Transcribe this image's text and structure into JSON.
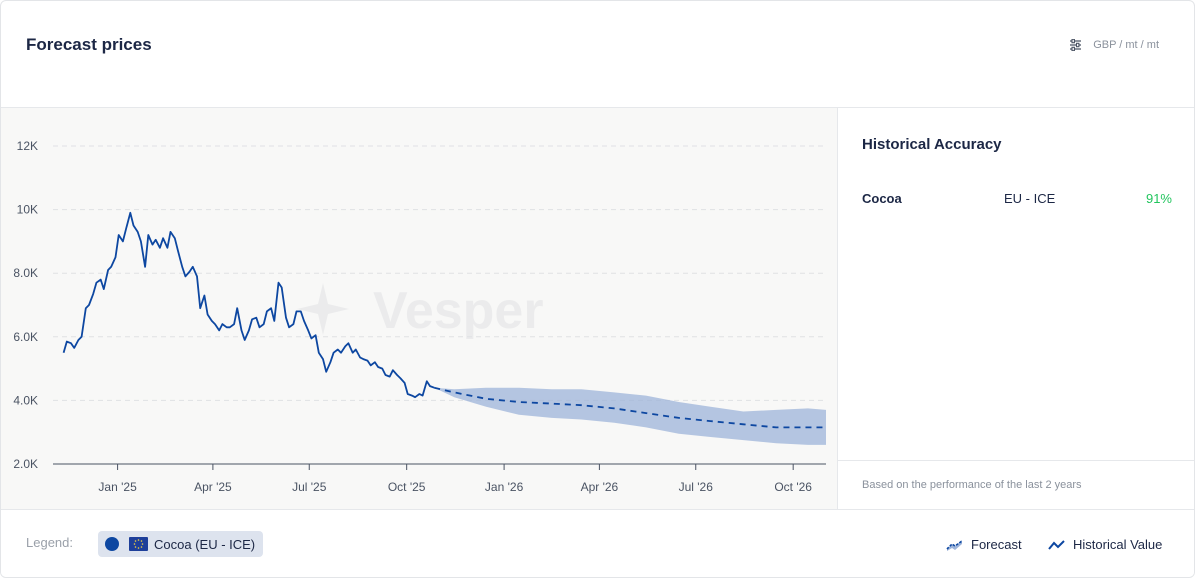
{
  "header": {
    "title": "Forecast prices",
    "units_label": "GBP / mt / mt",
    "units_icon": "sliders-icon"
  },
  "side": {
    "title": "Historical Accuracy",
    "rows": [
      {
        "commodity": "Cocoa",
        "exchange": "EU - ICE",
        "accuracy": "91%"
      }
    ],
    "note": "Based on the performance of the last 2 years",
    "accent_color": "#22c55e"
  },
  "footer": {
    "legend_label": "Legend:",
    "chip_label": "Cocoa (EU - ICE)",
    "chip_icon": "eu-flag-icon",
    "forecast_label": "Forecast",
    "historical_label": "Historical Value"
  },
  "chart_data": {
    "type": "line",
    "watermark": "Vesper",
    "x_axis": {
      "type": "date",
      "range": [
        "2024-11-01",
        "2026-11-01"
      ],
      "ticks": [
        {
          "date": "2025-01-01",
          "label": "Jan '25"
        },
        {
          "date": "2025-04-01",
          "label": "Apr '25"
        },
        {
          "date": "2025-07-01",
          "label": "Jul '25"
        },
        {
          "date": "2025-10-01",
          "label": "Oct '25"
        },
        {
          "date": "2026-01-01",
          "label": "Jan '26"
        },
        {
          "date": "2026-04-01",
          "label": "Apr '26"
        },
        {
          "date": "2026-07-01",
          "label": "Jul '26"
        },
        {
          "date": "2026-10-01",
          "label": "Oct '26"
        }
      ]
    },
    "y_axis": {
      "range": [
        2000,
        12000
      ],
      "ticks": [
        {
          "value": 2000,
          "label": "2.0K"
        },
        {
          "value": 4000,
          "label": "4.0K"
        },
        {
          "value": 6000,
          "label": "6.0K"
        },
        {
          "value": 8000,
          "label": "8.0K"
        },
        {
          "value": 10000,
          "label": "10K"
        },
        {
          "value": 12000,
          "label": "12K"
        }
      ],
      "grid": true
    },
    "series": [
      {
        "name": "Historical Value",
        "color": "#0d47a1",
        "points": [
          [
            "2024-11-11",
            5500
          ],
          [
            "2024-11-14",
            5850
          ],
          [
            "2024-11-18",
            5800
          ],
          [
            "2024-11-21",
            5650
          ],
          [
            "2024-11-25",
            5900
          ],
          [
            "2024-11-28",
            6000
          ],
          [
            "2024-12-02",
            6900
          ],
          [
            "2024-12-05",
            7000
          ],
          [
            "2024-12-09",
            7350
          ],
          [
            "2024-12-12",
            7700
          ],
          [
            "2024-12-16",
            7800
          ],
          [
            "2024-12-19",
            7500
          ],
          [
            "2024-12-23",
            8100
          ],
          [
            "2024-12-26",
            8200
          ],
          [
            "2024-12-30",
            8500
          ],
          [
            "2025-01-02",
            9200
          ],
          [
            "2025-01-06",
            9000
          ],
          [
            "2025-01-09",
            9400
          ],
          [
            "2025-01-13",
            9900
          ],
          [
            "2025-01-16",
            9500
          ],
          [
            "2025-01-20",
            9300
          ],
          [
            "2025-01-23",
            9000
          ],
          [
            "2025-01-27",
            8200
          ],
          [
            "2025-01-30",
            9200
          ],
          [
            "2025-02-03",
            8900
          ],
          [
            "2025-02-06",
            9050
          ],
          [
            "2025-02-10",
            8800
          ],
          [
            "2025-02-13",
            9100
          ],
          [
            "2025-02-17",
            8800
          ],
          [
            "2025-02-20",
            9300
          ],
          [
            "2025-02-24",
            9100
          ],
          [
            "2025-02-27",
            8700
          ],
          [
            "2025-03-03",
            8200
          ],
          [
            "2025-03-06",
            7900
          ],
          [
            "2025-03-10",
            8050
          ],
          [
            "2025-03-13",
            8200
          ],
          [
            "2025-03-17",
            7900
          ],
          [
            "2025-03-20",
            6900
          ],
          [
            "2025-03-24",
            7300
          ],
          [
            "2025-03-27",
            6700
          ],
          [
            "2025-03-31",
            6500
          ],
          [
            "2025-04-03",
            6400
          ],
          [
            "2025-04-07",
            6200
          ],
          [
            "2025-04-10",
            6400
          ],
          [
            "2025-04-14",
            6300
          ],
          [
            "2025-04-17",
            6300
          ],
          [
            "2025-04-21",
            6400
          ],
          [
            "2025-04-24",
            6900
          ],
          [
            "2025-04-28",
            6200
          ],
          [
            "2025-05-01",
            5900
          ],
          [
            "2025-05-05",
            6200
          ],
          [
            "2025-05-08",
            6550
          ],
          [
            "2025-05-12",
            6600
          ],
          [
            "2025-05-15",
            6300
          ],
          [
            "2025-05-19",
            6400
          ],
          [
            "2025-05-22",
            6800
          ],
          [
            "2025-05-26",
            6900
          ],
          [
            "2025-05-29",
            6500
          ],
          [
            "2025-06-02",
            7700
          ],
          [
            "2025-06-05",
            7550
          ],
          [
            "2025-06-09",
            6600
          ],
          [
            "2025-06-12",
            6300
          ],
          [
            "2025-06-16",
            6400
          ],
          [
            "2025-06-19",
            6800
          ],
          [
            "2025-06-23",
            6800
          ],
          [
            "2025-06-26",
            6500
          ],
          [
            "2025-06-30",
            6200
          ],
          [
            "2025-07-03",
            5950
          ],
          [
            "2025-07-07",
            6050
          ],
          [
            "2025-07-10",
            5500
          ],
          [
            "2025-07-14",
            5300
          ],
          [
            "2025-07-17",
            4900
          ],
          [
            "2025-07-21",
            5200
          ],
          [
            "2025-07-24",
            5500
          ],
          [
            "2025-07-28",
            5600
          ],
          [
            "2025-07-31",
            5500
          ],
          [
            "2025-08-04",
            5700
          ],
          [
            "2025-08-07",
            5800
          ],
          [
            "2025-08-11",
            5500
          ],
          [
            "2025-08-14",
            5600
          ],
          [
            "2025-08-18",
            5350
          ],
          [
            "2025-08-21",
            5300
          ],
          [
            "2025-08-25",
            5250
          ],
          [
            "2025-08-28",
            5100
          ],
          [
            "2025-09-01",
            5200
          ],
          [
            "2025-09-04",
            5050
          ],
          [
            "2025-09-08",
            5000
          ],
          [
            "2025-09-11",
            4800
          ],
          [
            "2025-09-15",
            4750
          ],
          [
            "2025-09-18",
            4950
          ],
          [
            "2025-09-22",
            4800
          ],
          [
            "2025-09-25",
            4700
          ],
          [
            "2025-09-29",
            4550
          ],
          [
            "2025-10-02",
            4200
          ],
          [
            "2025-10-06",
            4150
          ],
          [
            "2025-10-09",
            4100
          ],
          [
            "2025-10-13",
            4200
          ],
          [
            "2025-10-16",
            4150
          ],
          [
            "2025-10-20",
            4600
          ],
          [
            "2025-10-23",
            4450
          ],
          [
            "2025-10-27",
            4400
          ]
        ]
      },
      {
        "name": "Forecast",
        "color": "#0d47a1",
        "band_color": "#9db4da",
        "points": [
          [
            "2025-10-27",
            4400
          ],
          [
            "2025-11-15",
            4250
          ],
          [
            "2025-12-15",
            4050
          ],
          [
            "2026-01-15",
            3950
          ],
          [
            "2026-02-15",
            3900
          ],
          [
            "2026-03-15",
            3850
          ],
          [
            "2026-04-15",
            3750
          ],
          [
            "2026-05-15",
            3600
          ],
          [
            "2026-06-15",
            3450
          ],
          [
            "2026-07-15",
            3350
          ],
          [
            "2026-08-15",
            3250
          ],
          [
            "2026-09-15",
            3150
          ],
          [
            "2026-10-15",
            3150
          ],
          [
            "2026-11-01",
            3150
          ]
        ],
        "upper": [
          4400,
          4350,
          4400,
          4400,
          4350,
          4350,
          4250,
          4150,
          3950,
          3800,
          3650,
          3700,
          3750,
          3700
        ],
        "lower": [
          4400,
          4100,
          3800,
          3550,
          3450,
          3400,
          3300,
          3150,
          2950,
          2850,
          2750,
          2650,
          2600,
          2600
        ]
      }
    ]
  }
}
